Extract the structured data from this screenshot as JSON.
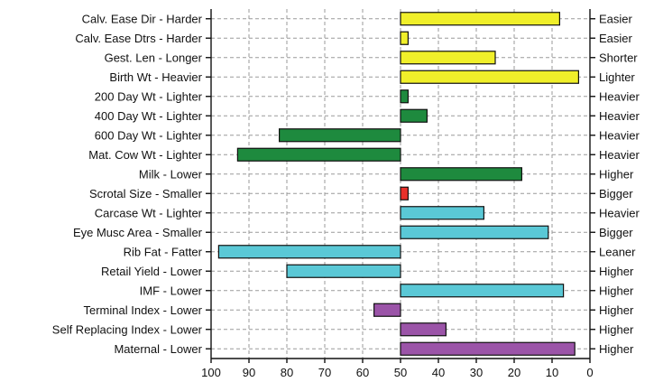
{
  "chart_data": {
    "type": "bar",
    "orientation": "horizontal",
    "title": "",
    "xlabel": "",
    "ylabel": "",
    "xlim": [
      100,
      0
    ],
    "x_reversed": true,
    "baseline": 50,
    "grid": true,
    "x_ticks": [
      "100",
      "90",
      "80",
      "70",
      "60",
      "50",
      "40",
      "30",
      "20",
      "10",
      "0"
    ],
    "x_tick_values": [
      100,
      90,
      80,
      70,
      60,
      50,
      40,
      30,
      20,
      10,
      0
    ],
    "categories": [
      "Calv. Ease Dir - Harder",
      "Calv. Ease Dtrs - Harder",
      "Gest. Len - Longer",
      "Birth Wt - Heavier",
      "200 Day Wt - Lighter",
      "400 Day Wt - Lighter",
      "600 Day Wt - Lighter",
      "Mat. Cow Wt - Lighter",
      "Milk - Lower",
      "Scrotal Size - Smaller",
      "Carcase Wt - Lighter",
      "Eye Musc Area - Smaller",
      "Rib Fat - Fatter",
      "Retail Yield - Lower",
      "IMF - Lower",
      "Terminal Index - Lower",
      "Self Replacing Index - Lower",
      "Maternal - Lower"
    ],
    "right_labels": [
      "Easier",
      "Easier",
      "Shorter",
      "Lighter",
      "Heavier",
      "Heavier",
      "Heavier",
      "Heavier",
      "Higher",
      "Bigger",
      "Heavier",
      "Bigger",
      "Leaner",
      "Higher",
      "Higher",
      "Higher",
      "Higher",
      "Higher"
    ],
    "values": [
      8,
      48,
      25,
      3,
      48,
      43,
      82,
      93,
      18,
      48,
      28,
      11,
      98,
      80,
      7,
      57,
      38,
      4
    ],
    "bar_colors": [
      "#f0ef2a",
      "#f0ef2a",
      "#f0ef2a",
      "#f0ef2a",
      "#1e8a3e",
      "#1e8a3e",
      "#1e8a3e",
      "#1e8a3e",
      "#1e8a3e",
      "#e8302a",
      "#5ac8d6",
      "#5ac8d6",
      "#5ac8d6",
      "#5ac8d6",
      "#5ac8d6",
      "#9b54a8",
      "#9b54a8",
      "#9b54a8"
    ]
  }
}
